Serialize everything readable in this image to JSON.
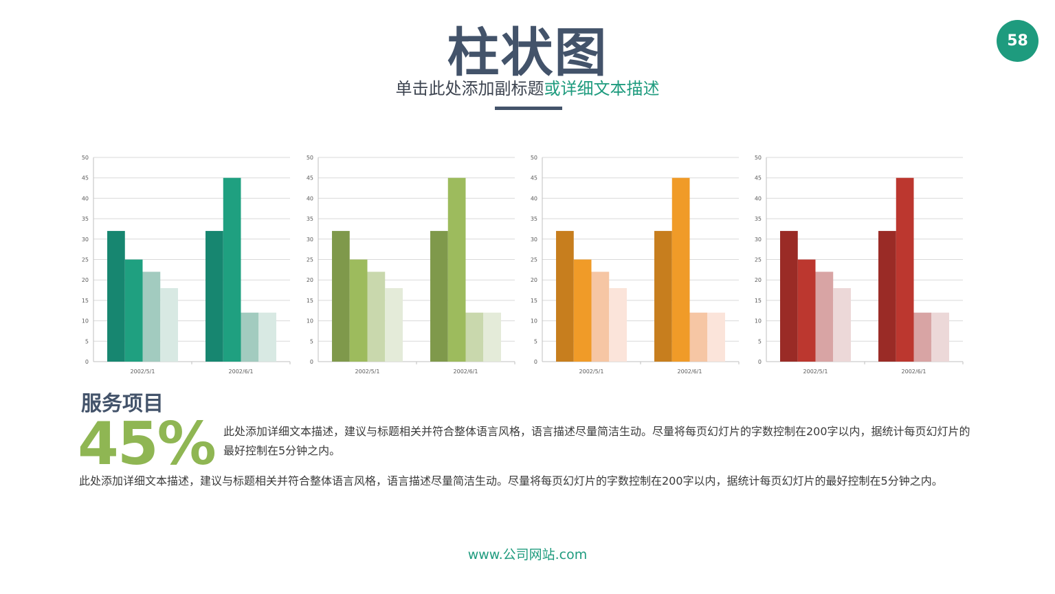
{
  "header": {
    "title": "柱状图",
    "subtitle_main": "单击此处添加副标题",
    "subtitle_accent": "或详细文本描述",
    "page_number": "58"
  },
  "colors": {
    "title": "#43536a",
    "accent": "#1e9b7e",
    "highlight": "#8fb653"
  },
  "chart_data": [
    {
      "type": "bar",
      "categories": [
        "2002/5/1",
        "2002/6/1"
      ],
      "series": [
        {
          "values": [
            32,
            32
          ],
          "color": "#178670"
        },
        {
          "values": [
            25,
            45
          ],
          "color": "#1fa080"
        },
        {
          "values": [
            22,
            12
          ],
          "color": "#a2cbbf"
        },
        {
          "values": [
            18,
            12
          ],
          "color": "#d8e9e3"
        }
      ],
      "ylim": [
        0,
        50
      ],
      "yticks": [
        0,
        5,
        10,
        15,
        20,
        25,
        30,
        35,
        40,
        45,
        50
      ],
      "grid": true
    },
    {
      "type": "bar",
      "categories": [
        "2002/5/1",
        "2002/6/1"
      ],
      "series": [
        {
          "values": [
            32,
            32
          ],
          "color": "#7f994b"
        },
        {
          "values": [
            25,
            45
          ],
          "color": "#9dbb5d"
        },
        {
          "values": [
            22,
            12
          ],
          "color": "#c9d8ad"
        },
        {
          "values": [
            18,
            12
          ],
          "color": "#e4ebd9"
        }
      ],
      "ylim": [
        0,
        50
      ],
      "yticks": [
        0,
        5,
        10,
        15,
        20,
        25,
        30,
        35,
        40,
        45,
        50
      ],
      "grid": true
    },
    {
      "type": "bar",
      "categories": [
        "2002/5/1",
        "2002/6/1"
      ],
      "series": [
        {
          "values": [
            32,
            32
          ],
          "color": "#c77e1e"
        },
        {
          "values": [
            25,
            45
          ],
          "color": "#f09b28"
        },
        {
          "values": [
            22,
            12
          ],
          "color": "#f6c6a4"
        },
        {
          "values": [
            18,
            12
          ],
          "color": "#fbe4da"
        }
      ],
      "ylim": [
        0,
        50
      ],
      "yticks": [
        0,
        5,
        10,
        15,
        20,
        25,
        30,
        35,
        40,
        45,
        50
      ],
      "grid": true
    },
    {
      "type": "bar",
      "categories": [
        "2002/5/1",
        "2002/6/1"
      ],
      "series": [
        {
          "values": [
            32,
            32
          ],
          "color": "#9a2b26"
        },
        {
          "values": [
            25,
            45
          ],
          "color": "#bc372f"
        },
        {
          "values": [
            22,
            12
          ],
          "color": "#d8a4a4"
        },
        {
          "values": [
            18,
            12
          ],
          "color": "#ecd8d8"
        }
      ],
      "ylim": [
        0,
        50
      ],
      "yticks": [
        0,
        5,
        10,
        15,
        20,
        25,
        30,
        35,
        40,
        45,
        50
      ],
      "grid": true
    }
  ],
  "section": {
    "title": "服务项目",
    "percent": "45%",
    "para1": "此处添加详细文本描述，建议与标题相关并符合整体语言风格，语言描述尽量简洁生动。尽量将每页幻灯片的字数控制在200字以内，据统计每页幻灯片的最好控制在5分钟之内。",
    "para2": "此处添加详细文本描述，建议与标题相关并符合整体语言风格，语言描述尽量简洁生动。尽量将每页幻灯片的字数控制在200字以内，据统计每页幻灯片的最好控制在5分钟之内。"
  },
  "footer": {
    "url": "www.公司网站.com"
  }
}
